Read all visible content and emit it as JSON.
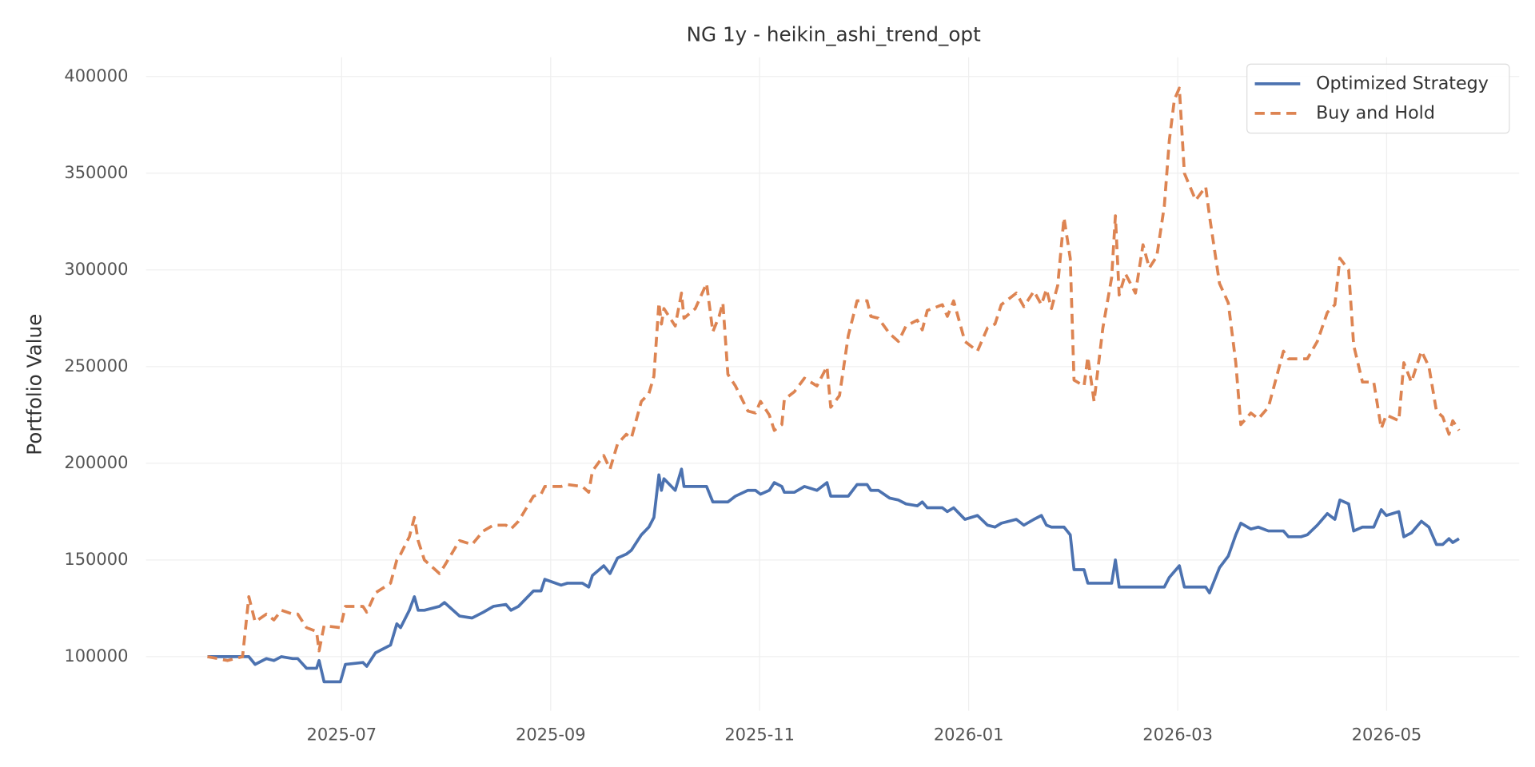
{
  "chart_data": {
    "type": "line",
    "title": "NG 1y - heikin_ashi_trend_opt",
    "y_label": "Portfolio Value",
    "grid": true,
    "legend": "upper right",
    "xlim": [
      2025.344,
      2026.439
    ],
    "xticks": [
      {
        "value": 2025.5,
        "label": "2025-07"
      },
      {
        "value": 2025.6667,
        "label": "2025-09"
      },
      {
        "value": 2025.8333,
        "label": "2025-11"
      },
      {
        "value": 2026.0,
        "label": "2026-01"
      },
      {
        "value": 2026.1667,
        "label": "2026-03"
      },
      {
        "value": 2026.3333,
        "label": "2026-05"
      }
    ],
    "ylim": [
      72000,
      410000
    ],
    "yticks": [
      100000,
      150000,
      200000,
      250000,
      300000,
      350000,
      400000
    ],
    "x": [
      2025.393,
      2025.409,
      2025.421,
      2025.426,
      2025.431,
      2025.44,
      2025.446,
      2025.452,
      2025.461,
      2025.465,
      2025.472,
      2025.48,
      2025.482,
      2025.486,
      2025.499,
      2025.503,
      2025.517,
      2025.52,
      2025.527,
      2025.539,
      2025.544,
      2025.547,
      2025.554,
      2025.558,
      2025.561,
      2025.566,
      2025.578,
      2025.582,
      2025.594,
      2025.604,
      2025.613,
      2025.621,
      2025.631,
      2025.635,
      2025.641,
      2025.653,
      2025.659,
      2025.662,
      2025.675,
      2025.68,
      2025.692,
      2025.697,
      2025.7,
      2025.709,
      2025.714,
      2025.72,
      2025.727,
      2025.731,
      2025.739,
      2025.745,
      2025.749,
      2025.753,
      2025.755,
      2025.757,
      2025.766,
      2025.771,
      2025.773,
      2025.782,
      2025.791,
      2025.796,
      2025.801,
      2025.804,
      2025.808,
      2025.814,
      2025.824,
      2025.83,
      2025.834,
      2025.841,
      2025.845,
      2025.851,
      2025.853,
      2025.861,
      2025.869,
      2025.879,
      2025.887,
      2025.89,
      2025.897,
      2025.904,
      2025.911,
      2025.919,
      2025.922,
      2025.928,
      2025.937,
      2025.944,
      2025.95,
      2025.959,
      2025.963,
      2025.967,
      2025.979,
      2025.983,
      2025.988,
      2025.997,
      2026.007,
      2026.015,
      2026.021,
      2026.026,
      2026.038,
      2026.044,
      2026.052,
      2026.058,
      2026.062,
      2026.066,
      2026.071,
      2026.076,
      2026.081,
      2026.084,
      2026.092,
      2026.095,
      2026.1,
      2026.107,
      2026.114,
      2026.117,
      2026.12,
      2026.125,
      2026.133,
      2026.139,
      2026.144,
      2026.15,
      2026.156,
      2026.16,
      2026.164,
      2026.168,
      2026.172,
      2026.181,
      2026.189,
      2026.192,
      2026.2,
      2026.207,
      2026.213,
      2026.217,
      2026.225,
      2026.231,
      2026.239,
      2026.251,
      2026.255,
      2026.265,
      2026.27,
      2026.278,
      2026.286,
      2026.292,
      2026.296,
      2026.303,
      2026.307,
      2026.314,
      2026.323,
      2026.329,
      2026.333,
      2026.343,
      2026.347,
      2026.353,
      2026.361,
      2026.367,
      2026.373,
      2026.378,
      2026.383,
      2026.386,
      2026.391
    ],
    "series": [
      {
        "name": "Optimized Strategy",
        "color": "#4c72b0",
        "style": "solid",
        "values": [
          100000,
          100000,
          100000,
          100000,
          96000,
          99000,
          98000,
          100000,
          99000,
          99000,
          94000,
          94000,
          98000,
          87000,
          87000,
          96000,
          97000,
          95000,
          102000,
          106000,
          117000,
          115000,
          124000,
          131000,
          124000,
          124000,
          126000,
          128000,
          121000,
          120000,
          123000,
          126000,
          127000,
          124000,
          126000,
          134000,
          134000,
          140000,
          137000,
          138000,
          138000,
          136000,
          142000,
          147000,
          143000,
          151000,
          153000,
          155000,
          163000,
          167000,
          172000,
          194000,
          186000,
          192000,
          186000,
          197000,
          188000,
          188000,
          188000,
          180000,
          180000,
          180000,
          180000,
          183000,
          186000,
          186000,
          184000,
          186000,
          190000,
          188000,
          185000,
          185000,
          188000,
          186000,
          190000,
          183000,
          183000,
          183000,
          189000,
          189000,
          186000,
          186000,
          182000,
          181000,
          179000,
          178000,
          180000,
          177000,
          177000,
          175000,
          177000,
          171000,
          173000,
          168000,
          167000,
          169000,
          171000,
          168000,
          171000,
          173000,
          168000,
          167000,
          167000,
          167000,
          163000,
          145000,
          145000,
          138000,
          138000,
          138000,
          138000,
          150000,
          136000,
          136000,
          136000,
          136000,
          136000,
          136000,
          136000,
          141000,
          144000,
          147000,
          136000,
          136000,
          136000,
          133000,
          146000,
          152000,
          163000,
          169000,
          166000,
          167000,
          165000,
          165000,
          162000,
          162000,
          163000,
          168000,
          174000,
          171000,
          181000,
          179000,
          165000,
          167000,
          167000,
          176000,
          173000,
          175000,
          162000,
          164000,
          170000,
          167000,
          158000,
          158000,
          161000,
          159000,
          161000
        ]
      },
      {
        "name": "Buy and Hold",
        "color": "#dd8452",
        "style": "dashed",
        "values": [
          100000,
          98000,
          100000,
          131000,
          118000,
          122000,
          119000,
          124000,
          122000,
          122000,
          115000,
          113000,
          103000,
          116000,
          115000,
          126000,
          126000,
          123000,
          133000,
          138000,
          150000,
          153000,
          162000,
          172000,
          160000,
          150000,
          143000,
          147000,
          160000,
          158000,
          165000,
          168000,
          168000,
          166000,
          170000,
          183000,
          184000,
          188000,
          188000,
          189000,
          188000,
          185000,
          196000,
          204000,
          197000,
          210000,
          215000,
          213000,
          232000,
          236000,
          245000,
          283000,
          272000,
          280000,
          271000,
          288000,
          275000,
          280000,
          293000,
          268000,
          276000,
          283000,
          246000,
          240000,
          227000,
          226000,
          232000,
          225000,
          217000,
          220000,
          233000,
          237000,
          244000,
          240000,
          250000,
          229000,
          235000,
          266000,
          284000,
          284000,
          276000,
          275000,
          267000,
          263000,
          271000,
          274000,
          269000,
          279000,
          282000,
          276000,
          284000,
          263000,
          258000,
          270000,
          272000,
          282000,
          288000,
          281000,
          289000,
          282000,
          290000,
          280000,
          292000,
          327000,
          306000,
          243000,
          240000,
          255000,
          232000,
          270000,
          296000,
          328000,
          287000,
          298000,
          288000,
          313000,
          301000,
          307000,
          333000,
          367000,
          388000,
          394000,
          350000,
          336000,
          343000,
          328000,
          293000,
          283000,
          252000,
          220000,
          226000,
          223000,
          229000,
          258000,
          254000,
          254000,
          254000,
          263000,
          278000,
          282000,
          306000,
          300000,
          261000,
          242000,
          242000,
          218000,
          225000,
          222000,
          252000,
          242000,
          258000,
          250000,
          227000,
          224000,
          215000,
          222000,
          217000
        ]
      }
    ]
  }
}
